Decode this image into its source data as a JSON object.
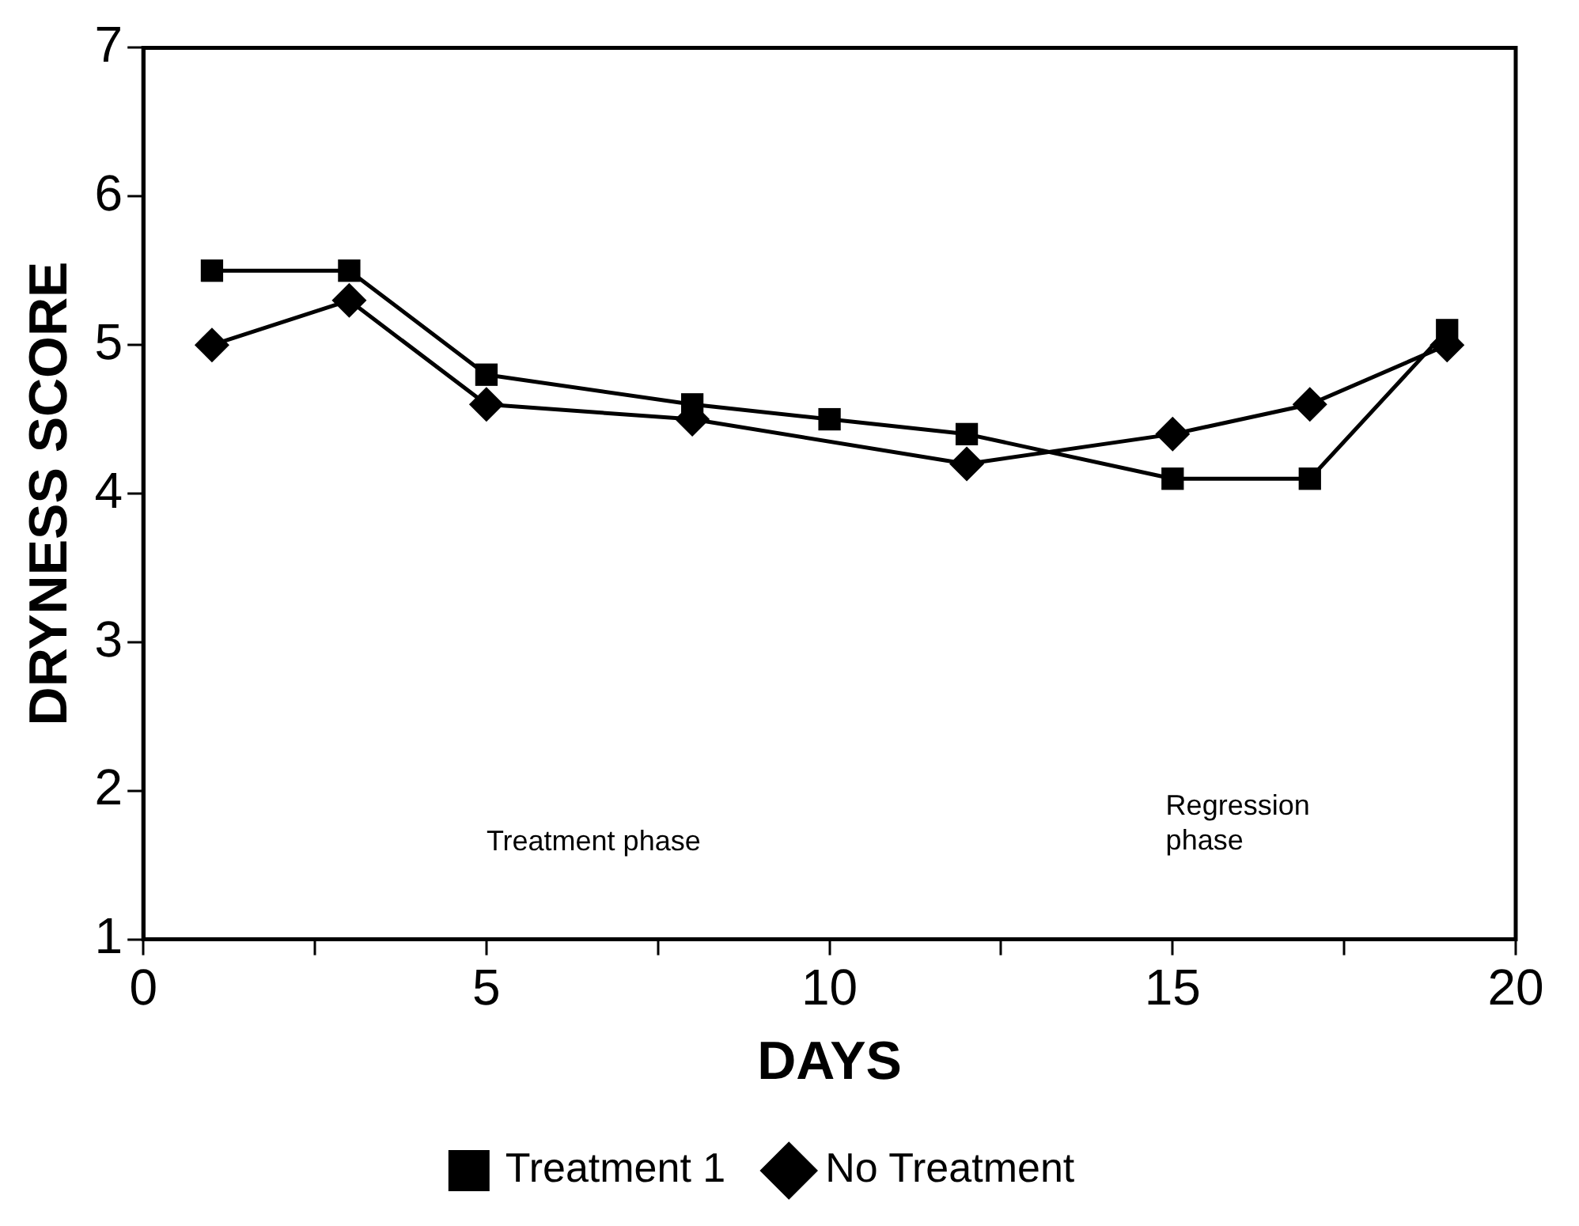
{
  "chart_data": {
    "type": "line",
    "xlabel": "DAYS",
    "ylabel": "DRYNESS SCORE",
    "xlim": [
      0,
      20
    ],
    "xticks": [
      0,
      {
        "value": 2.5,
        "label": null
      },
      5,
      {
        "value": 7.5,
        "label": null
      },
      10,
      {
        "value": 12.5,
        "label": null
      },
      15,
      {
        "value": 17.5,
        "label": null
      },
      20
    ],
    "ylim": [
      1,
      7
    ],
    "yticks": [
      1,
      2,
      3,
      4,
      5,
      6,
      7
    ],
    "grid": false,
    "legend": "bottom",
    "line_style": "solid",
    "series": [
      {
        "name": "Treatment 1",
        "color": "#000000",
        "marker": "square",
        "x": [
          1,
          3,
          5,
          8,
          10,
          12,
          15,
          17,
          19
        ],
        "values": [
          5.5,
          5.5,
          4.8,
          4.6,
          4.5,
          4.4,
          4.1,
          4.1,
          5.1
        ]
      },
      {
        "name": "No Treatment",
        "color": "#000000",
        "marker": "diamond",
        "x": [
          1,
          3,
          5,
          8,
          10,
          12,
          15,
          17,
          19
        ],
        "values": [
          5.0,
          5.3,
          4.6,
          4.5,
          null,
          4.2,
          4.4,
          4.6,
          5.0
        ]
      }
    ],
    "annotations": [
      "Treatment phase",
      "Regression phase"
    ]
  }
}
